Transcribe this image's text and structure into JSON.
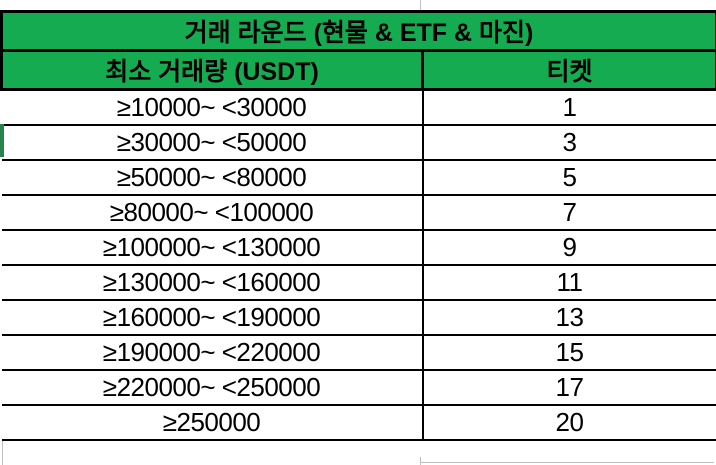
{
  "colors": {
    "header_green": "#15AB50",
    "border_black": "#000000",
    "gridline_gray": "#BFBFBF",
    "sliver_green": "#26844E"
  },
  "table": {
    "title": "거래 라운드 (현물 & ETF & 마진)",
    "columns": [
      "최소 거래량 (USDT)",
      "티켓"
    ],
    "rows": [
      {
        "range": "≥10000~ <30000",
        "tickets": "1"
      },
      {
        "range": "≥30000~ <50000",
        "tickets": "3"
      },
      {
        "range": "≥50000~ <80000",
        "tickets": "5"
      },
      {
        "range": "≥80000~ <100000",
        "tickets": "7"
      },
      {
        "range": "≥100000~ <130000",
        "tickets": "9"
      },
      {
        "range": "≥130000~ <160000",
        "tickets": "11"
      },
      {
        "range": "≥160000~ <190000",
        "tickets": "13"
      },
      {
        "range": "≥190000~ <220000",
        "tickets": "15"
      },
      {
        "range": "≥220000~ <250000",
        "tickets": "17"
      },
      {
        "range": "≥250000",
        "tickets": "20"
      }
    ]
  }
}
